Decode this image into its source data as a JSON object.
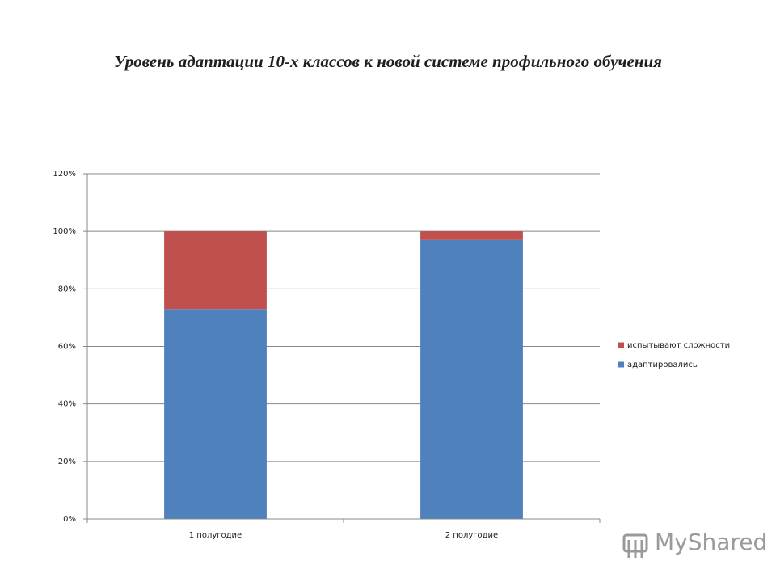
{
  "chart_data": {
    "type": "stacked_bar",
    "title": "Уровень адаптации 10-х классов к новой системе профильного обучения",
    "categories": [
      "1 полугодие",
      "2 полугодие"
    ],
    "series": [
      {
        "name": "адаптировались",
        "color": "#4f81bd",
        "values": [
          73,
          97
        ]
      },
      {
        "name": "испытывают сложности",
        "color": "#c0504d",
        "values": [
          27,
          3
        ]
      }
    ],
    "ylim": [
      0,
      120
    ],
    "yticks": [
      {
        "value": 0,
        "label": "0%"
      },
      {
        "value": 20,
        "label": "20%"
      },
      {
        "value": 40,
        "label": "40%"
      },
      {
        "value": 60,
        "label": "60%"
      },
      {
        "value": 80,
        "label": "80%"
      },
      {
        "value": 100,
        "label": "100%"
      },
      {
        "value": 120,
        "label": "120%"
      }
    ],
    "grid": true,
    "legend": "right"
  },
  "watermark": "MyShared"
}
